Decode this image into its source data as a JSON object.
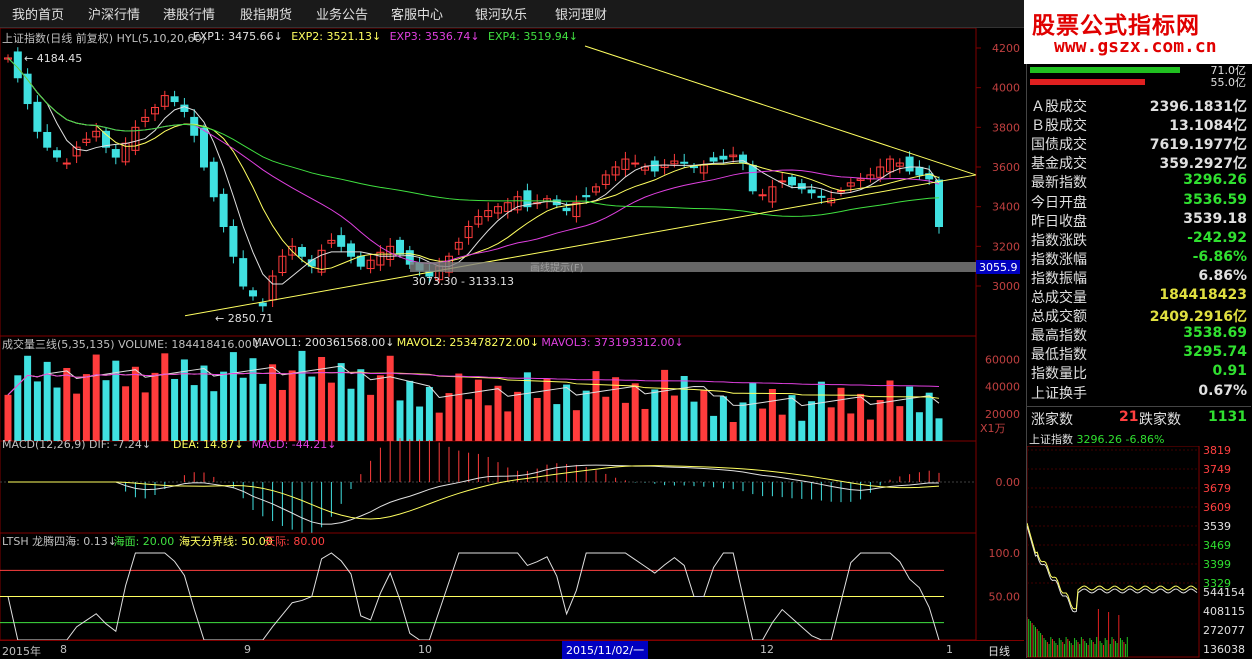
{
  "menu": [
    "我的首页",
    "沪深行情",
    "港股行情",
    "股指期货",
    "业务公告",
    "客服中心",
    "银河玖乐",
    "银河理财"
  ],
  "logo": {
    "main": "股票公式指标网",
    "url": "www.gszx.com.cn"
  },
  "main_chart": {
    "header": [
      {
        "text": "上证指数(日线 前复权) HYL(5,10,20,60)",
        "color": "#c0c0c0"
      },
      {
        "text": "EXP1: 3475.66↓",
        "color": "#e0e0e0"
      },
      {
        "text": "EXP2: 3521.13↓",
        "color": "#ffff60"
      },
      {
        "text": "EXP3: 3536.74↓",
        "color": "#e040e0"
      },
      {
        "text": "EXP4: 3519.94↓",
        "color": "#40e040"
      }
    ],
    "y_ticks": [
      "4200",
      "4000",
      "3800",
      "3600",
      "3400",
      "3200",
      "3000"
    ],
    "annotations": {
      "high": "4184.45",
      "low": "2850.71",
      "range": "3073.30 - 3133.13",
      "price_tag": "3055.9",
      "faded": "画线提示(F)"
    }
  },
  "volume_chart": {
    "header": [
      {
        "text": "成交量三线(5,35,135) VOLUME: 184418416.00↓",
        "color": "#c0c0c0"
      },
      {
        "text": "MAVOL1: 200361568.00↓",
        "color": "#e0e0e0"
      },
      {
        "text": "MAVOL2: 253478272.00↓",
        "color": "#ffff60"
      },
      {
        "text": "MAVOL3: 373193312.00↓",
        "color": "#e040e0"
      }
    ],
    "y_ticks": [
      "60000",
      "40000",
      "20000"
    ],
    "unit": "X1万"
  },
  "macd_chart": {
    "header": [
      {
        "text": "MACD(12,26,9) DIF: -7.24↓",
        "color": "#c0c0c0"
      },
      {
        "text": "DEA: 14.87↓",
        "color": "#ffff60"
      },
      {
        "text": "MACD: -44.21↓",
        "color": "#e040e0"
      }
    ],
    "y_ticks": [
      "0.00"
    ]
  },
  "ltsh_chart": {
    "header": [
      {
        "text": "LTSH 龙腾四海: 0.13↓",
        "color": "#c0c0c0"
      },
      {
        "text": "海面: 20.00",
        "color": "#40e040"
      },
      {
        "text": "海天分界线: 50.00",
        "color": "#ffff60"
      },
      {
        "text": "天际: 80.00",
        "color": "#ff4040"
      }
    ],
    "y_ticks": [
      "100.0",
      "50.00"
    ]
  },
  "bottom_axis": {
    "labels": [
      "2015年",
      "8",
      "9",
      "10",
      "11",
      "12",
      "1"
    ],
    "cursor": "2015/11/02/一",
    "period": "日线"
  },
  "right_panel": {
    "bars": [
      {
        "label": "71.0亿",
        "color": "#20c020"
      },
      {
        "label": "55.0亿",
        "color": "#e02020"
      }
    ],
    "stats": [
      {
        "label": "Ａ股成交",
        "value": "2396.1831亿",
        "color": "#e0e0e0"
      },
      {
        "label": "Ｂ股成交",
        "value": "13.1084亿",
        "color": "#e0e0e0"
      },
      {
        "label": "国债成交",
        "value": "7619.1977亿",
        "color": "#e0e0e0"
      },
      {
        "label": "基金成交",
        "value": "359.2927亿",
        "color": "#e0e0e0"
      },
      {
        "label": "最新指数",
        "value": "3296.26",
        "color": "#30e030"
      },
      {
        "label": "今日开盘",
        "value": "3536.59",
        "color": "#30e030"
      },
      {
        "label": "昨日收盘",
        "value": "3539.18",
        "color": "#e0e0e0"
      },
      {
        "label": "指数涨跌",
        "value": "-242.92",
        "color": "#30e030"
      },
      {
        "label": "指数涨幅",
        "value": "-6.86%",
        "color": "#30e030"
      },
      {
        "label": "指数振幅",
        "value": "6.86%",
        "color": "#e0e0e0"
      },
      {
        "label": "总成交量",
        "value": "184418423",
        "color": "#e0e040"
      },
      {
        "label": "总成交额",
        "value": "2409.2916亿",
        "color": "#e0e040"
      },
      {
        "label": "最高指数",
        "value": "3538.69",
        "color": "#30e030"
      },
      {
        "label": "最低指数",
        "value": "3295.74",
        "color": "#30e030"
      },
      {
        "label": "指数量比",
        "value": "0.91",
        "color": "#30e030"
      },
      {
        "label": "上证换手",
        "value": "0.67%",
        "color": "#e0e0e0"
      }
    ],
    "breadth": {
      "up_label": "涨家数",
      "up": "21",
      "down_label": "跌家数",
      "down": "1131"
    },
    "mini": {
      "title": "上证指数",
      "value": "3296.26",
      "pct": "-6.86%",
      "price_ticks": [
        "3819",
        "3749",
        "3679",
        "3609",
        "3539",
        "3469",
        "3399",
        "3329"
      ],
      "vol_ticks": [
        "544154",
        "408115",
        "272077",
        "136038"
      ]
    }
  },
  "colors": {
    "up": "#ff3c3c",
    "down": "#40e0e0",
    "grid": "#800000"
  }
}
